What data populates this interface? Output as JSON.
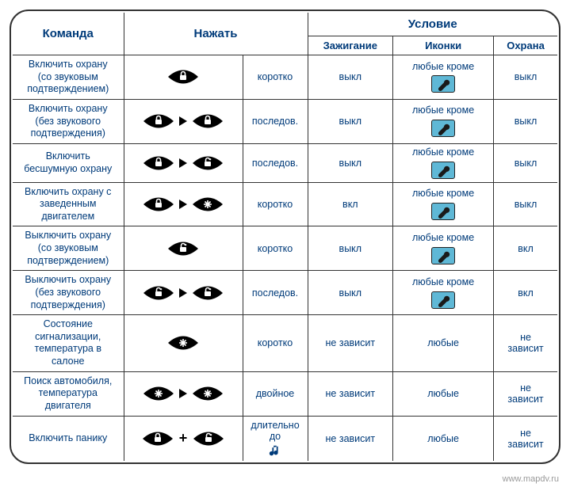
{
  "headers": {
    "command": "Команда",
    "press": "Нажать",
    "condition": "Условие",
    "ignition": "Зажигание",
    "icons": "Иконки",
    "guard": "Охрана"
  },
  "labels": {
    "any_except": "любые кроме",
    "any": "любые"
  },
  "rows": [
    {
      "cmd": "Включить охрану\n(со звуковым\nподтверждением)",
      "press_icons": [
        "lock"
      ],
      "press_text": "коротко",
      "ignition": "выкл",
      "icon_mode": "wrench",
      "guard": "выкл"
    },
    {
      "cmd": "Включить охрану\n(без звукового\nподтверждения)",
      "press_icons": [
        "lock",
        "arrow",
        "lock"
      ],
      "press_text": "последов.",
      "ignition": "выкл",
      "icon_mode": "wrench",
      "guard": "выкл"
    },
    {
      "cmd": "Включить\nбесшумную охрану",
      "press_icons": [
        "lock",
        "arrow",
        "unlock"
      ],
      "press_text": "последов.",
      "ignition": "выкл",
      "icon_mode": "wrench",
      "guard": "выкл"
    },
    {
      "cmd": "Включить охрану с\nзаведенным\nдвигателем",
      "press_icons": [
        "lock",
        "arrow",
        "star"
      ],
      "press_text": "коротко",
      "ignition": "вкл",
      "icon_mode": "wrench",
      "guard": "выкл"
    },
    {
      "cmd": "Выключить охрану\n(со звуковым\nподтверждением)",
      "press_icons": [
        "unlock"
      ],
      "press_text": "коротко",
      "ignition": "выкл",
      "icon_mode": "wrench",
      "guard": "вкл"
    },
    {
      "cmd": "Выключить охрану\n(без звукового\nподтверждения)",
      "press_icons": [
        "unlock",
        "arrow",
        "unlock"
      ],
      "press_text": "последов.",
      "ignition": "выкл",
      "icon_mode": "wrench",
      "guard": "вкл"
    },
    {
      "cmd": "Состояние\nсигнализации,\nтемпература в\nсалоне",
      "press_icons": [
        "star"
      ],
      "press_text": "коротко",
      "ignition": "не зависит",
      "icon_mode": "any",
      "guard": "не\nзависит"
    },
    {
      "cmd": "Поиск автомобиля,\nтемпература\nдвигателя",
      "press_icons": [
        "star",
        "arrow",
        "star"
      ],
      "press_text": "двойное",
      "ignition": "не зависит",
      "icon_mode": "any",
      "guard": "не\nзависит"
    },
    {
      "cmd": "Включить панику",
      "press_icons": [
        "lock",
        "plus",
        "unlock"
      ],
      "press_text_special": "длительно до",
      "ignition": "не зависит",
      "icon_mode": "any",
      "guard": "не\nзависит"
    }
  ],
  "watermark": "www.mapdv.ru",
  "colors": {
    "text": "#003b7a",
    "border": "#333333",
    "wrench_bg": "#5fb8d6",
    "eye_fill": "#000000"
  }
}
